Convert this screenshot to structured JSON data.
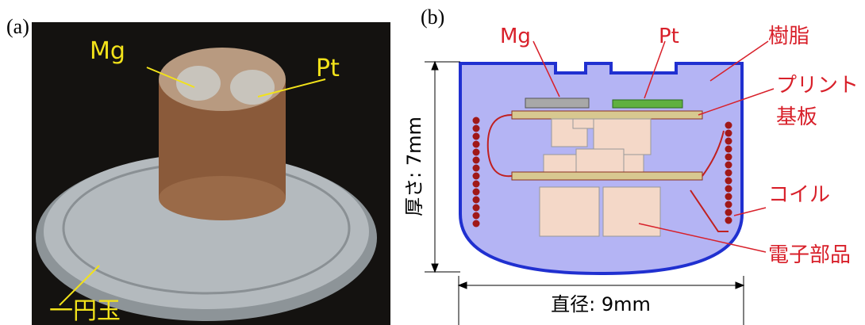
{
  "panel_a": {
    "label": "(a)",
    "mg": "Mg",
    "pt": "Pt",
    "coin": "一円玉"
  },
  "panel_b": {
    "label": "(b)",
    "mg": "Mg",
    "pt": "Pt",
    "resin": "樹脂",
    "board_1": "プリント",
    "board_2": "基板",
    "coil": "コイル",
    "parts": "電子部品",
    "thickness": "厚さ: 7mm",
    "diameter": "直径: 9mm"
  }
}
